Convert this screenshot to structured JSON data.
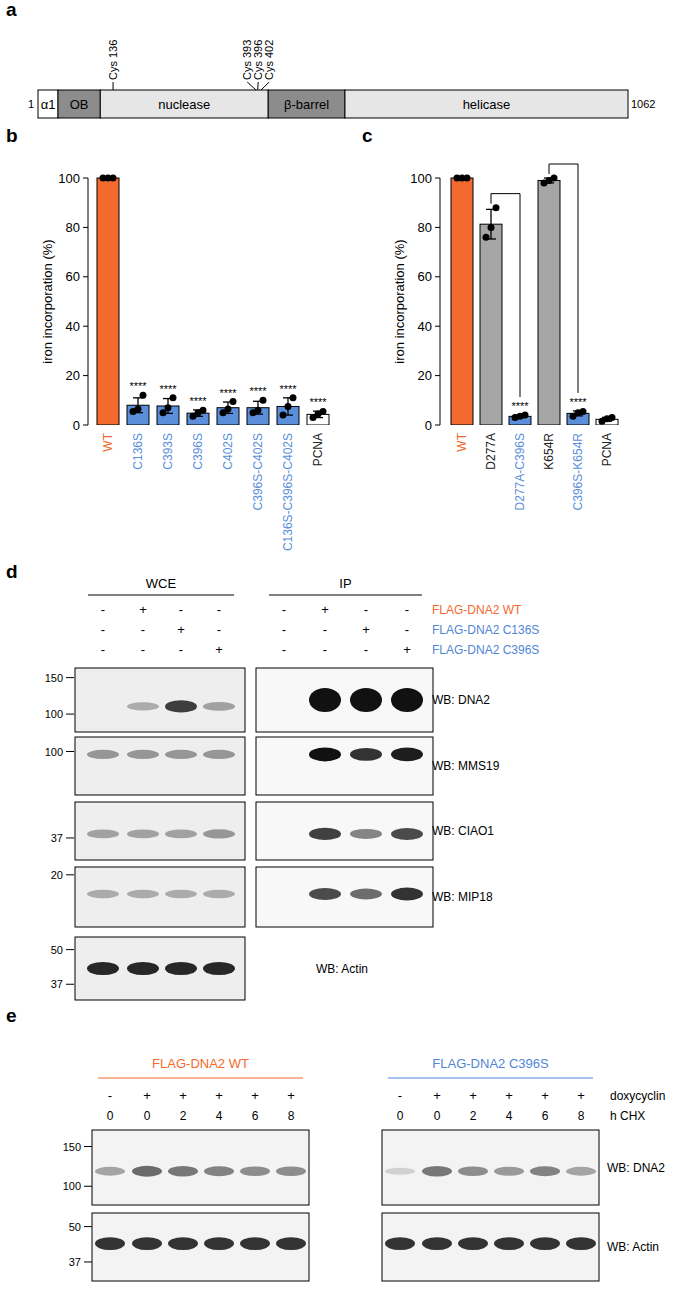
{
  "panel_labels": [
    "a",
    "b",
    "c",
    "d",
    "e"
  ],
  "domain_map": {
    "start": 1,
    "end": 1062,
    "domains": [
      {
        "name": "α1",
        "start": 1,
        "end": 37,
        "color": "#ffffff"
      },
      {
        "name": "OB",
        "start": 37,
        "end": 113,
        "color": "#8c8c8c"
      },
      {
        "name": "nuclease",
        "start": 113,
        "end": 415,
        "color": "#e6e6e6"
      },
      {
        "name": "β-barrel",
        "start": 415,
        "end": 553,
        "color": "#8c8c8c"
      },
      {
        "name": "helicase",
        "start": 553,
        "end": 1062,
        "color": "#e6e6e6"
      }
    ],
    "cysteines": [
      {
        "label": "Cys 136",
        "position": 136
      },
      {
        "label": "Cys 393",
        "position": 393
      },
      {
        "label": "Cys 396",
        "position": 396
      },
      {
        "label": "Cys 402",
        "position": 402
      }
    ]
  },
  "chart_data": [
    {
      "type": "bar",
      "y_label": "iron incorporation (%)",
      "categories": [
        "WT",
        "C136S",
        "C393S",
        "C396S",
        "C402S",
        "C396S-C402S",
        "C136S-C396S-C402S",
        "PCNA"
      ],
      "values": [
        100,
        8,
        7.7,
        4.8,
        7,
        7,
        7.5,
        4.3
      ],
      "errors": [
        0,
        3,
        3,
        1.3,
        2.3,
        2.6,
        3.5,
        1.3
      ],
      "points": [
        [
          100,
          100,
          100
        ],
        [
          5.5,
          6.5,
          12
        ],
        [
          5,
          7,
          11
        ],
        [
          3.5,
          5,
          6
        ],
        [
          5,
          6.5,
          9.5
        ],
        [
          5,
          6,
          10
        ],
        [
          4,
          7.5,
          11
        ],
        [
          3,
          4.5,
          5.5
        ]
      ],
      "colors": [
        "#f26a2e",
        "#5b8fd9",
        "#5b8fd9",
        "#5b8fd9",
        "#5b8fd9",
        "#5b8fd9",
        "#5b8fd9",
        "#ffffff"
      ],
      "significance": [
        null,
        "****",
        "****",
        "****",
        "****",
        "****",
        "****",
        "****"
      ],
      "ylim": [
        0,
        100
      ],
      "yticks": [
        0,
        20,
        40,
        60,
        80,
        100
      ]
    },
    {
      "type": "bar",
      "y_label": "iron incorporation (%)",
      "categories": [
        "WT",
        "D277A",
        "D277A-C396S",
        "K654R",
        "C396S-K654R",
        "PCNA"
      ],
      "values": [
        100,
        81.3,
        3.5,
        99,
        4.7,
        2.3
      ],
      "errors": [
        0,
        6,
        0.5,
        1,
        1,
        0.8
      ],
      "points": [
        [
          100,
          100,
          100
        ],
        [
          76,
          80,
          88
        ],
        [
          3,
          3.5,
          4
        ],
        [
          98,
          99,
          100
        ],
        [
          3.5,
          5,
          5.5
        ],
        [
          1.5,
          2.5,
          3
        ]
      ],
      "colors": [
        "#f26a2e",
        "#a6a6a6",
        "#5b8fd9",
        "#a6a6a6",
        "#5b8fd9",
        "#ffffff"
      ],
      "significance": [
        null,
        null,
        "****",
        null,
        "****",
        null
      ],
      "comparisons": [
        [
          "D277A",
          "D277A-C396S"
        ],
        [
          "K654R",
          "C396S-K654R"
        ]
      ],
      "ylim": [
        0,
        100
      ],
      "yticks": [
        0,
        20,
        40,
        60,
        80,
        100
      ]
    }
  ],
  "western_d": {
    "groups": [
      {
        "label": "WCE"
      },
      {
        "label": "IP"
      }
    ],
    "conditions": [
      {
        "label": "FLAG-DNA2 WT",
        "color": "#f26a2e",
        "signs": [
          [
            "-",
            "+",
            "-",
            "-"
          ],
          [
            "-",
            "+",
            "-",
            "-"
          ]
        ]
      },
      {
        "label": "FLAG-DNA2 C136S",
        "color": "#4f86d6",
        "signs": [
          [
            "-",
            "-",
            "+",
            "-"
          ],
          [
            "-",
            "-",
            "+",
            "-"
          ]
        ]
      },
      {
        "label": "FLAG-DNA2 C396S",
        "color": "#4f86d6",
        "signs": [
          [
            "-",
            "-",
            "-",
            "+"
          ],
          [
            "-",
            "-",
            "-",
            "+"
          ]
        ]
      }
    ],
    "blots": [
      {
        "label": "WB: DNA2",
        "markers": [
          150,
          100
        ],
        "band_intensity": [
          [
            0,
            0.3,
            0.8,
            0.35
          ],
          [
            0,
            1,
            1,
            1
          ]
        ]
      },
      {
        "label": "WB: MMS19",
        "markers": [
          100
        ],
        "band_intensity": [
          [
            0.4,
            0.4,
            0.4,
            0.4
          ],
          [
            0,
            1,
            0.85,
            0.95
          ]
        ]
      },
      {
        "label": "WB: CIAO1",
        "markers": [
          37
        ],
        "band_intensity": [
          [
            0.35,
            0.35,
            0.35,
            0.4
          ],
          [
            0,
            0.8,
            0.5,
            0.75
          ]
        ]
      },
      {
        "label": "WB: MIP18",
        "markers": [
          20
        ],
        "band_intensity": [
          [
            0.3,
            0.3,
            0.3,
            0.3
          ],
          [
            0,
            0.75,
            0.6,
            0.85
          ]
        ]
      },
      {
        "label": "WB: Actin",
        "markers": [
          50,
          37
        ],
        "band_intensity": [
          [
            0.9,
            0.9,
            0.9,
            0.9
          ]
        ]
      }
    ]
  },
  "western_e": {
    "row_labels": [
      "doxycyclin",
      "h CHX"
    ],
    "groups": [
      {
        "label": "FLAG-DNA2 WT",
        "color": "#f26a2e",
        "doxycyclin": [
          "-",
          "+",
          "+",
          "+",
          "+",
          "+"
        ],
        "chx_h": [
          0,
          0,
          2,
          4,
          6,
          8
        ]
      },
      {
        "label": "FLAG-DNA2 C396S",
        "color": "#4f86d6",
        "doxycyclin": [
          "-",
          "+",
          "+",
          "+",
          "+",
          "+"
        ],
        "chx_h": [
          0,
          0,
          2,
          4,
          6,
          8
        ]
      }
    ],
    "blots": [
      {
        "label": "WB: DNA2",
        "markers": [
          150,
          100
        ],
        "band_intensity": [
          [
            0.35,
            0.6,
            0.55,
            0.5,
            0.45,
            0.45
          ],
          [
            0.15,
            0.55,
            0.45,
            0.4,
            0.5,
            0.35
          ]
        ]
      },
      {
        "label": "WB: Actin",
        "markers": [
          50,
          37
        ],
        "band_intensity": [
          [
            0.85,
            0.85,
            0.85,
            0.85,
            0.85,
            0.85
          ],
          [
            0.85,
            0.85,
            0.85,
            0.85,
            0.85,
            0.85
          ]
        ]
      }
    ]
  }
}
